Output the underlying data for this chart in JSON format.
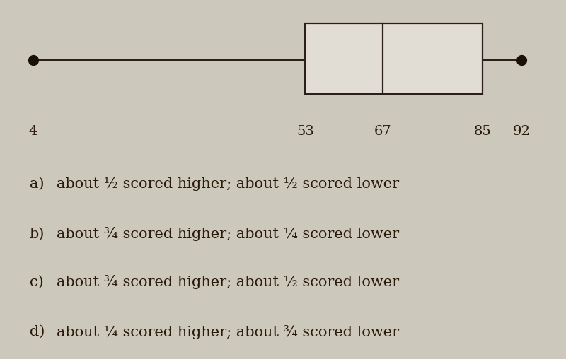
{
  "min": 4,
  "q1": 53,
  "median": 67,
  "q3": 85,
  "max": 92,
  "tick_labels": [
    "4",
    "53",
    "67",
    "85",
    "92"
  ],
  "tick_values": [
    4,
    53,
    67,
    85,
    92
  ],
  "background_color": "#cdc8bc",
  "box_facecolor": "#e2ddd4",
  "box_edgecolor": "#2a1f1a",
  "line_color": "#2a1f1a",
  "dot_color": "#1a1008",
  "options": [
    {
      "label": "a)",
      "text": "about ½ scored higher; about ½ scored lower"
    },
    {
      "label": "b)",
      "text": "about ¾ scored higher; about ¼ scored lower"
    },
    {
      "label": "c)",
      "text": "about ¾ scored higher; about ½ scored lower"
    },
    {
      "label": "d)",
      "text": "about ¼ scored higher; about ¾ scored lower"
    }
  ],
  "data_xlim": [
    -2,
    100
  ],
  "tick_fontsize": 14,
  "option_fontsize": 15,
  "label_fontsize": 15,
  "text_color": "#2a1a0a"
}
